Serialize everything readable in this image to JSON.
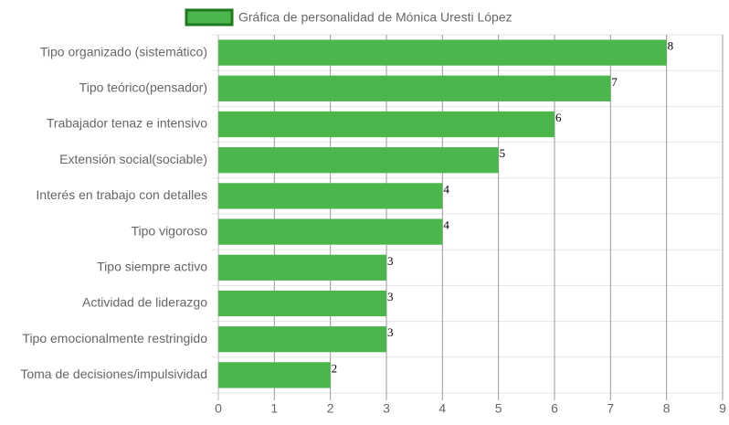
{
  "chart_data": {
    "type": "bar",
    "orientation": "horizontal",
    "categories": [
      "Tipo organizado (sistemático)",
      "Tipo teórico(pensador)",
      "Trabajador tenaz e intensivo",
      "Extensión social(sociable)",
      "Interés en trabajo con detalles",
      "Tipo vigoroso",
      "Tipo siempre activo",
      "Actividad de liderazgo",
      "Tipo emocionalmente restringido",
      "Toma de decisiones/impulsividad"
    ],
    "series": [
      {
        "name": "Gráfica de personalidad de Mónica Uresti López",
        "color": "#4cb54c",
        "border_color": "#1f7a1f",
        "values": [
          8,
          7,
          6,
          5,
          4,
          4,
          3,
          3,
          3,
          2
        ]
      }
    ],
    "xlim": [
      0,
      9
    ],
    "xticks": [
      0,
      1,
      2,
      3,
      4,
      5,
      6,
      7,
      8,
      9
    ],
    "grid": true,
    "legend": "top"
  }
}
